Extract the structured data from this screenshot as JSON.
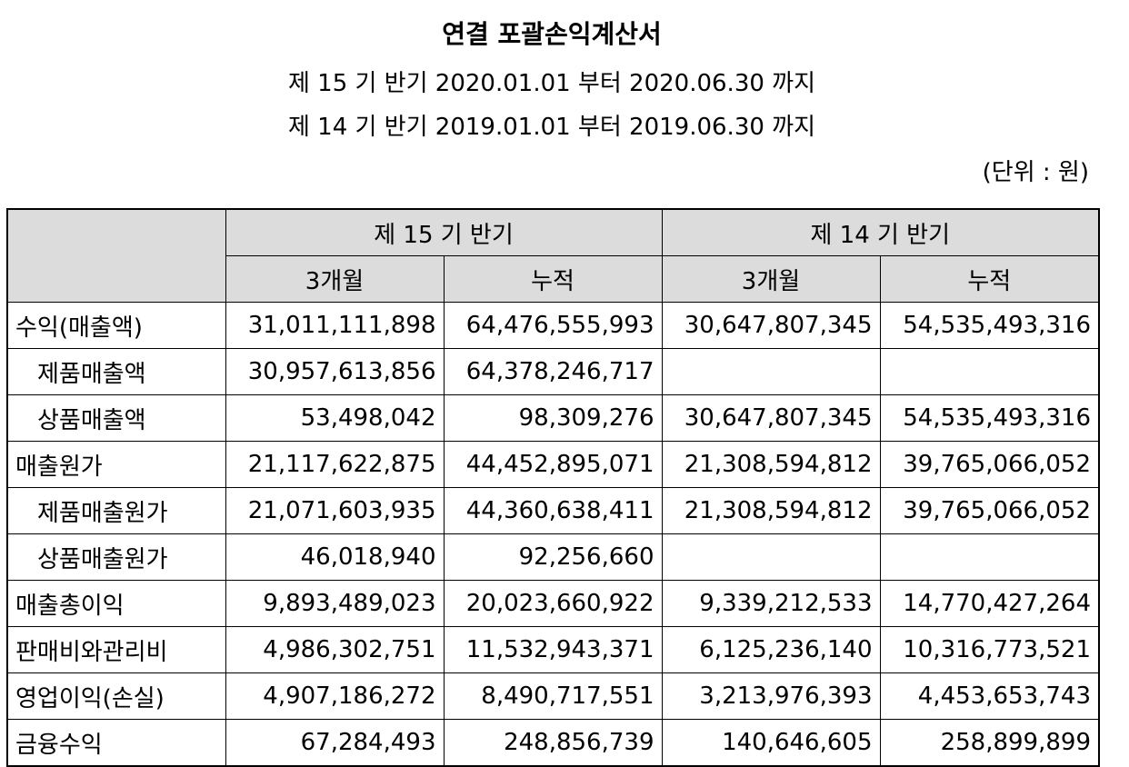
{
  "header": {
    "title": "연결 포괄손익계산서",
    "period_current": "제 15 기 반기 2020.01.01 부터 2020.06.30 까지",
    "period_prior": "제 14 기 반기 2019.01.01 부터 2019.06.30 까지",
    "unit": "(단위 : 원)"
  },
  "table": {
    "group_headers": [
      "제 15 기 반기",
      "제 14 기 반기"
    ],
    "sub_headers": [
      "3개월",
      "누적",
      "3개월",
      "누적"
    ],
    "rows": [
      {
        "label": "수익(매출액)",
        "indent": false,
        "values": [
          "31,011,111,898",
          "64,476,555,993",
          "30,647,807,345",
          "54,535,493,316"
        ]
      },
      {
        "label": "제품매출액",
        "indent": true,
        "values": [
          "30,957,613,856",
          "64,378,246,717",
          "",
          ""
        ]
      },
      {
        "label": "상품매출액",
        "indent": true,
        "values": [
          "53,498,042",
          "98,309,276",
          "30,647,807,345",
          "54,535,493,316"
        ]
      },
      {
        "label": "매출원가",
        "indent": false,
        "values": [
          "21,117,622,875",
          "44,452,895,071",
          "21,308,594,812",
          "39,765,066,052"
        ]
      },
      {
        "label": "제품매출원가",
        "indent": true,
        "values": [
          "21,071,603,935",
          "44,360,638,411",
          "21,308,594,812",
          "39,765,066,052"
        ]
      },
      {
        "label": "상품매출원가",
        "indent": true,
        "values": [
          "46,018,940",
          "92,256,660",
          "",
          ""
        ]
      },
      {
        "label": "매출총이익",
        "indent": false,
        "values": [
          "9,893,489,023",
          "20,023,660,922",
          "9,339,212,533",
          "14,770,427,264"
        ]
      },
      {
        "label": "판매비와관리비",
        "indent": false,
        "values": [
          "4,986,302,751",
          "11,532,943,371",
          "6,125,236,140",
          "10,316,773,521"
        ]
      },
      {
        "label": "영업이익(손실)",
        "indent": false,
        "values": [
          "4,907,186,272",
          "8,490,717,551",
          "3,213,976,393",
          "4,453,653,743"
        ]
      },
      {
        "label": "금융수익",
        "indent": false,
        "values": [
          "67,284,493",
          "248,856,739",
          "140,646,605",
          "258,899,899"
        ]
      }
    ]
  }
}
